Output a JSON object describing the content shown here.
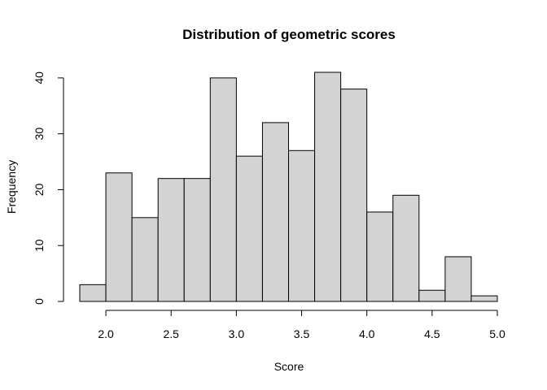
{
  "chart_data": {
    "type": "bar",
    "title": "Distribution of geometric scores",
    "xlabel": "Score",
    "ylabel": "Frequency",
    "bin_edges": [
      1.8,
      2.0,
      2.2,
      2.4,
      2.6,
      2.8,
      3.0,
      3.2,
      3.4,
      3.6,
      3.8,
      4.0,
      4.2,
      4.4,
      4.6,
      4.8,
      5.0
    ],
    "values": [
      3,
      23,
      15,
      22,
      22,
      40,
      26,
      32,
      27,
      41,
      38,
      16,
      19,
      2,
      8,
      1
    ],
    "x_ticks": [
      "2.0",
      "2.5",
      "3.0",
      "3.5",
      "4.0",
      "4.5",
      "5.0"
    ],
    "y_ticks": [
      "0",
      "10",
      "20",
      "30",
      "40"
    ],
    "xlim": [
      1.8,
      5.0
    ],
    "ylim": [
      0,
      41
    ],
    "grid": false,
    "bar_color": "#d3d3d3"
  }
}
